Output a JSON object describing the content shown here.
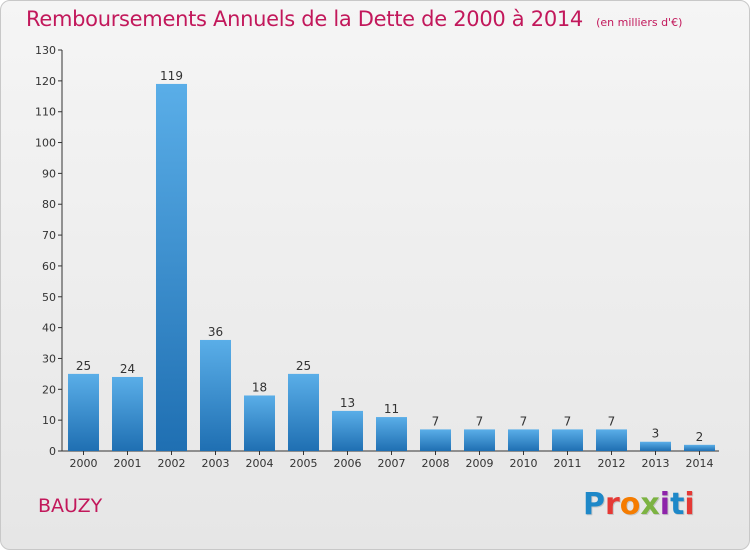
{
  "header": {
    "title": "Remboursements Annuels de la Dette de 2000 à 2014",
    "unit": "(en milliers d'€)"
  },
  "footer": {
    "commune": "BAUZY",
    "logo_text": "Proxiti",
    "logo_colors": [
      "#1e88c8",
      "#e53935",
      "#f57c00",
      "#7cb342",
      "#8e24aa",
      "#1e88c8",
      "#e53935"
    ]
  },
  "chart_data": {
    "type": "bar",
    "title": "Remboursements Annuels de la Dette de 2000 à 2014",
    "subtitle": "(en milliers d'€)",
    "xlabel": "",
    "ylabel": "",
    "categories": [
      "2000",
      "2001",
      "2002",
      "2003",
      "2004",
      "2005",
      "2006",
      "2007",
      "2008",
      "2009",
      "2010",
      "2011",
      "2012",
      "2013",
      "2014"
    ],
    "values": [
      25,
      24,
      119,
      36,
      18,
      25,
      13,
      11,
      7,
      7,
      7,
      7,
      7,
      3,
      2
    ],
    "ylim": [
      0,
      130
    ],
    "yticks": [
      0,
      10,
      20,
      30,
      40,
      50,
      60,
      70,
      80,
      90,
      100,
      110,
      120,
      130
    ],
    "grid": false,
    "legend": "none",
    "bar_color_top": "#5aaee8",
    "bar_color_bottom": "#1f6fb2",
    "axis_color": "#333333"
  }
}
